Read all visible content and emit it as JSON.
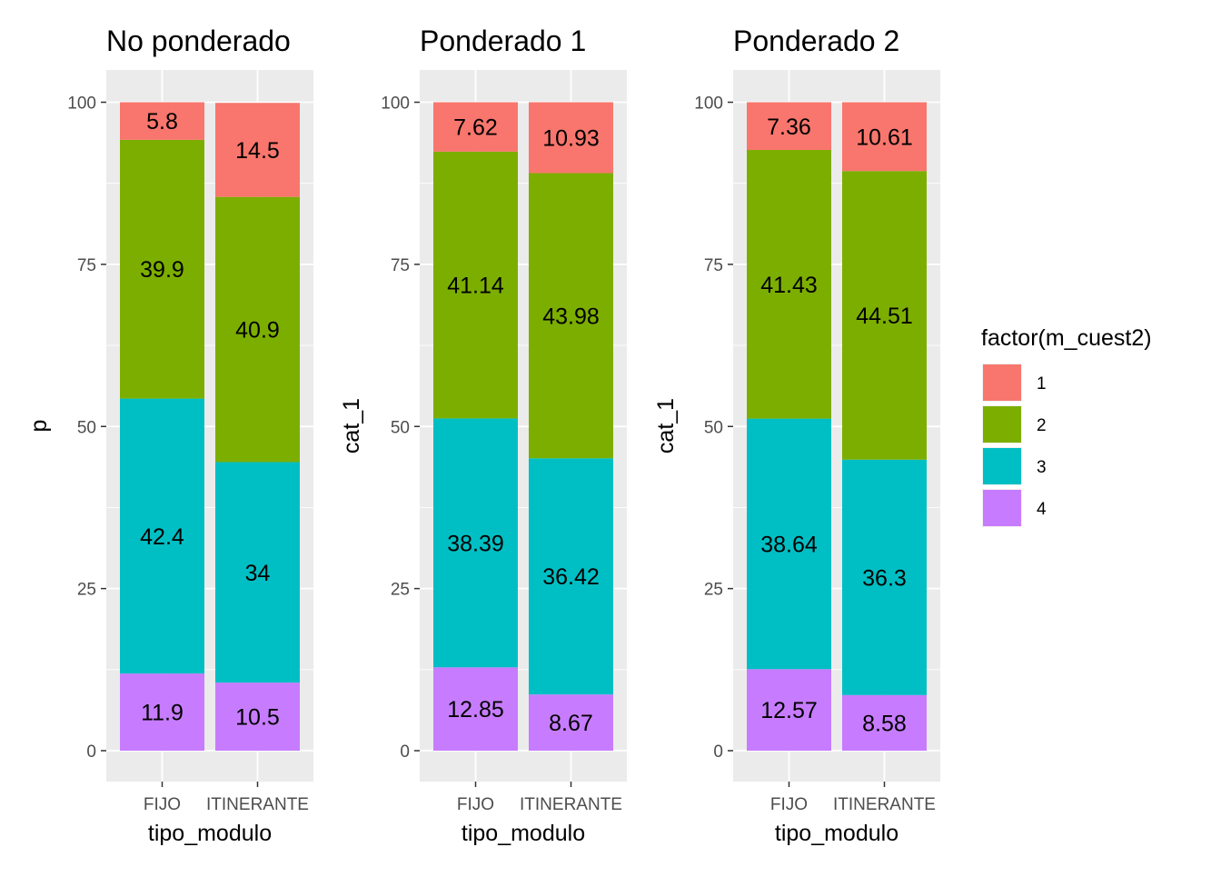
{
  "chart_data": [
    {
      "type": "bar",
      "stacked": true,
      "title": "No ponderado",
      "xlabel": "tipo_modulo",
      "ylabel": "p",
      "ylim": [
        0,
        100
      ],
      "yticks": [
        "0",
        "25",
        "50",
        "75",
        "100"
      ],
      "categories": [
        "FIJO",
        "ITINERANTE"
      ],
      "series": [
        {
          "name": "1",
          "values": [
            5.8,
            14.5
          ],
          "labels": [
            "5.8",
            "14.5"
          ]
        },
        {
          "name": "2",
          "values": [
            39.9,
            40.9
          ],
          "labels": [
            "39.9",
            "40.9"
          ]
        },
        {
          "name": "3",
          "values": [
            42.4,
            34
          ],
          "labels": [
            "42.4",
            "34"
          ]
        },
        {
          "name": "4",
          "values": [
            11.9,
            10.5
          ],
          "labels": [
            "11.9",
            "10.5"
          ]
        }
      ],
      "grid": true
    },
    {
      "type": "bar",
      "stacked": true,
      "title": "Ponderado 1",
      "xlabel": "tipo_modulo",
      "ylabel": "cat_1",
      "ylim": [
        0,
        100
      ],
      "yticks": [
        "0",
        "25",
        "50",
        "75",
        "100"
      ],
      "categories": [
        "FIJO",
        "ITINERANTE"
      ],
      "series": [
        {
          "name": "1",
          "values": [
            7.62,
            10.93
          ],
          "labels": [
            "7.62",
            "10.93"
          ]
        },
        {
          "name": "2",
          "values": [
            41.14,
            43.98
          ],
          "labels": [
            "41.14",
            "43.98"
          ]
        },
        {
          "name": "3",
          "values": [
            38.39,
            36.42
          ],
          "labels": [
            "38.39",
            "36.42"
          ]
        },
        {
          "name": "4",
          "values": [
            12.85,
            8.67
          ],
          "labels": [
            "12.85",
            "8.67"
          ]
        }
      ],
      "grid": true
    },
    {
      "type": "bar",
      "stacked": true,
      "title": "Ponderado 2",
      "xlabel": "tipo_modulo",
      "ylabel": "cat_1",
      "ylim": [
        0,
        100
      ],
      "yticks": [
        "0",
        "25",
        "50",
        "75",
        "100"
      ],
      "categories": [
        "FIJO",
        "ITINERANTE"
      ],
      "series": [
        {
          "name": "1",
          "values": [
            7.36,
            10.61
          ],
          "labels": [
            "7.36",
            "10.61"
          ]
        },
        {
          "name": "2",
          "values": [
            41.43,
            44.51
          ],
          "labels": [
            "41.43",
            "44.51"
          ]
        },
        {
          "name": "3",
          "values": [
            38.64,
            36.3
          ],
          "labels": [
            "38.64",
            "36.3"
          ]
        },
        {
          "name": "4",
          "values": [
            12.57,
            8.58
          ],
          "labels": [
            "12.57",
            "8.58"
          ]
        }
      ],
      "grid": true
    }
  ],
  "legend": {
    "title": "factor(m_cuest2)",
    "placement": "right",
    "items": [
      {
        "label": "1",
        "color": "#F8766D"
      },
      {
        "label": "2",
        "color": "#7CAE00"
      },
      {
        "label": "3",
        "color": "#00BFC4"
      },
      {
        "label": "4",
        "color": "#C77CFF"
      }
    ]
  },
  "colors": {
    "panel_background": "#EBEBEB",
    "grid_line": "#FFFFFF",
    "tick_text": "#4D4D4D",
    "text": "#000000",
    "series_1": "#F8766D",
    "series_2": "#7CAE00",
    "series_3": "#00BFC4",
    "series_4": "#C77CFF"
  }
}
